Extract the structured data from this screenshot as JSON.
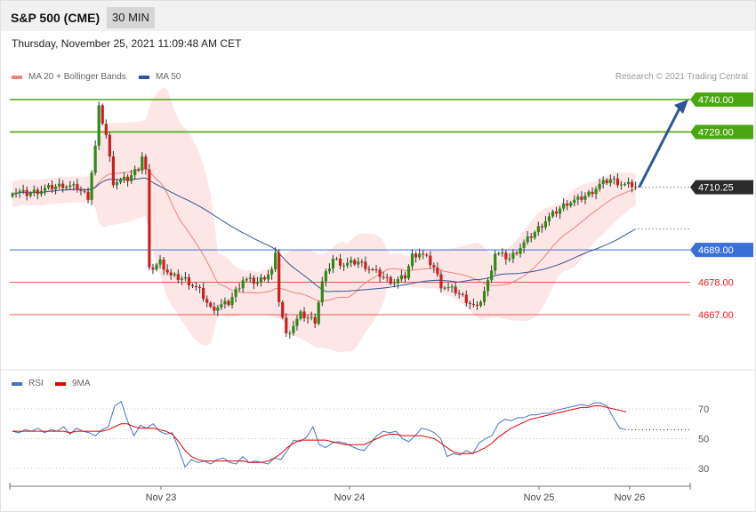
{
  "header": {
    "title": "S&P 500 (CME)",
    "timeframe": "30 MIN"
  },
  "datetime": "Thursday, November 25, 2021 11:09:48 AM CET",
  "legend": {
    "ma20": {
      "label": "MA 20 + Bollinger Bands",
      "color": "#f08080"
    },
    "ma50": {
      "label": "MA 50",
      "color": "#2f5597"
    },
    "rsi": {
      "label": "RSI",
      "color": "#4472c4"
    },
    "rsi_ma": {
      "label": "9MA",
      "color": "#e00000"
    }
  },
  "credit": "Research © 2021 Trading Central",
  "x_ticks": [
    "Nov 23",
    "Nov 24",
    "Nov 25",
    "Nov 26"
  ],
  "chart_data": [
    {
      "type": "candlestick",
      "ylim": [
        4649,
        4753
      ],
      "current_price": {
        "label": "4710.25",
        "value": 4710.25
      },
      "levels": [
        {
          "label": "4740.00",
          "value": 4740.0,
          "kind": "resistance",
          "color": "#4aa70f"
        },
        {
          "label": "4729.00",
          "value": 4729.0,
          "kind": "resistance",
          "color": "#4aa70f"
        },
        {
          "label": "4689.00",
          "value": 4689.0,
          "kind": "pivot",
          "color": "#3a6fd8"
        },
        {
          "label": "4678.00",
          "value": 4678.0,
          "kind": "support",
          "color": "#e31a1c"
        },
        {
          "label": "4667.00",
          "value": 4667.0,
          "kind": "support",
          "color": "#e31a1c"
        }
      ],
      "forecast_arrow": {
        "from": 4710.25,
        "to": 4740.0,
        "color": "#2f5597"
      },
      "series": [
        {
          "name": "MA 20 + Bollinger Bands"
        },
        {
          "name": "MA 50"
        }
      ],
      "anchors": [
        [
          0,
          4709
        ],
        [
          4,
          4708
        ],
        [
          10,
          4710
        ],
        [
          14,
          4711
        ],
        [
          18,
          4710
        ],
        [
          21,
          4707
        ],
        [
          23,
          4724
        ],
        [
          24,
          4737
        ],
        [
          26,
          4728
        ],
        [
          28,
          4712
        ],
        [
          32,
          4713
        ],
        [
          35,
          4717
        ],
        [
          36,
          4721
        ],
        [
          37,
          4716
        ],
        [
          38,
          4682
        ],
        [
          41,
          4685
        ],
        [
          44,
          4680
        ],
        [
          48,
          4679
        ],
        [
          52,
          4675
        ],
        [
          55,
          4669
        ],
        [
          60,
          4671
        ],
        [
          64,
          4679
        ],
        [
          68,
          4678
        ],
        [
          72,
          4682
        ],
        [
          73,
          4687
        ],
        [
          74,
          4672
        ],
        [
          76,
          4660
        ],
        [
          80,
          4667
        ],
        [
          84,
          4665
        ],
        [
          86,
          4678
        ],
        [
          89,
          4686
        ],
        [
          92,
          4684
        ],
        [
          96,
          4685
        ],
        [
          100,
          4682
        ],
        [
          104,
          4679
        ],
        [
          106,
          4678
        ],
        [
          109,
          4680
        ],
        [
          111,
          4687
        ],
        [
          113,
          4688
        ],
        [
          115,
          4686
        ],
        [
          117,
          4683
        ],
        [
          119,
          4677
        ],
        [
          123,
          4675
        ],
        [
          127,
          4671
        ],
        [
          129,
          4669
        ],
        [
          132,
          4678
        ],
        [
          134,
          4688
        ],
        [
          138,
          4686
        ],
        [
          141,
          4690
        ],
        [
          145,
          4695
        ],
        [
          148,
          4699
        ],
        [
          151,
          4702
        ],
        [
          154,
          4705
        ],
        [
          157,
          4706
        ],
        [
          160,
          4708
        ],
        [
          163,
          4711
        ],
        [
          166,
          4713
        ],
        [
          168,
          4712
        ],
        [
          170,
          4711
        ],
        [
          172,
          4711
        ],
        [
          173,
          4710.25
        ]
      ]
    },
    {
      "type": "line",
      "title": "RSI",
      "ylim": [
        22,
        78
      ],
      "y_ticks": [
        70,
        50,
        30
      ],
      "series": [
        {
          "name": "RSI",
          "values": [
            55,
            54,
            56,
            55,
            57,
            54,
            56,
            55,
            58,
            53,
            57,
            55,
            54,
            52,
            56,
            58,
            72,
            75,
            62,
            52,
            59,
            57,
            60,
            55,
            53,
            54,
            43,
            31,
            36,
            34,
            35,
            33,
            36,
            37,
            34,
            33,
            38,
            34,
            35,
            34,
            33,
            37,
            36,
            42,
            49,
            48,
            51,
            58,
            46,
            44,
            47,
            48,
            47,
            45,
            43,
            42,
            47,
            52,
            55,
            54,
            55,
            50,
            48,
            52,
            57,
            56,
            54,
            50,
            38,
            40,
            39,
            42,
            40,
            47,
            50,
            52,
            60,
            63,
            62,
            64,
            64,
            66,
            66,
            67,
            67,
            69,
            70,
            71,
            72,
            73,
            72,
            74,
            74,
            72,
            64,
            57,
            56
          ]
        },
        {
          "name": "9MA",
          "values": [
            55,
            55,
            55,
            55,
            55,
            55,
            55,
            55,
            55,
            54,
            55,
            55,
            55,
            55,
            55,
            56,
            58,
            60,
            60,
            58,
            57,
            57,
            57,
            56,
            55,
            53,
            48,
            42,
            38,
            36,
            35,
            35,
            35,
            35,
            35,
            35,
            35,
            34,
            34,
            34,
            35,
            37,
            40,
            44,
            47,
            49,
            49,
            49,
            49,
            49,
            48,
            47,
            46,
            46,
            46,
            46,
            48,
            50,
            52,
            53,
            53,
            52,
            52,
            52,
            52,
            51,
            50,
            47,
            44,
            41,
            40,
            40,
            40,
            42,
            44,
            47,
            51,
            54,
            57,
            59,
            61,
            63,
            64,
            65,
            66,
            67,
            68,
            69,
            70,
            71,
            71,
            72,
            72,
            71,
            70,
            69,
            68
          ]
        }
      ]
    }
  ]
}
